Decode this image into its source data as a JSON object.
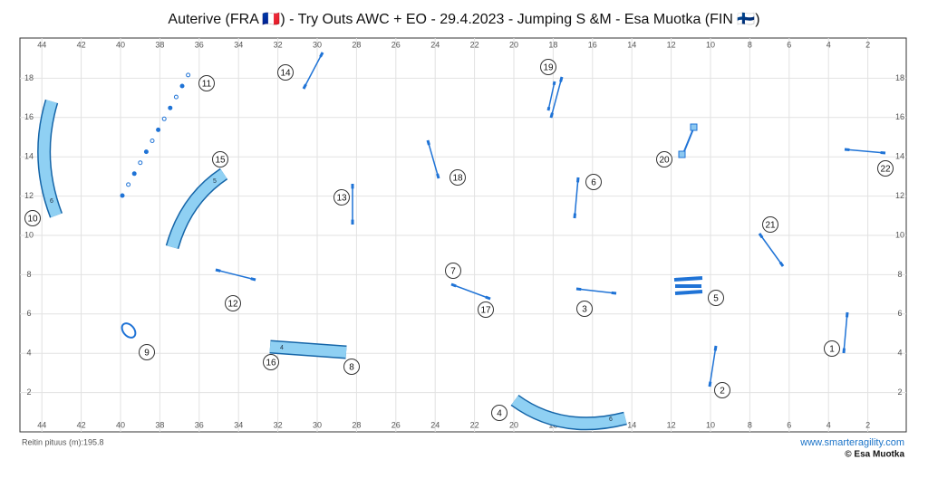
{
  "header": {
    "title": "Auterive (FRA 🇫🇷) - Try Outs AWC + EO - 29.4.2023 - Jumping S &M - Esa Muotka (FIN 🇫🇮)"
  },
  "field": {
    "xticks": [
      44,
      42,
      40,
      38,
      36,
      34,
      32,
      30,
      28,
      26,
      24,
      22,
      20,
      18,
      16,
      14,
      12,
      10,
      8,
      6,
      4,
      2
    ],
    "yticks": [
      18,
      16,
      14,
      12,
      10,
      8,
      6,
      4,
      2
    ]
  },
  "obstacles": [
    "1",
    "2",
    "3",
    "4",
    "5",
    "6",
    "7",
    "8",
    "9",
    "10",
    "11",
    "12",
    "13",
    "14",
    "15",
    "16",
    "17",
    "18",
    "19",
    "20",
    "21",
    "22"
  ],
  "tunnel_marks": [
    "6",
    "5",
    "4",
    "6"
  ],
  "footer": {
    "length": "Reitin pituus (m):195.8",
    "site": "www.smarteragility.com",
    "copyright": "© Esa Muotka"
  }
}
